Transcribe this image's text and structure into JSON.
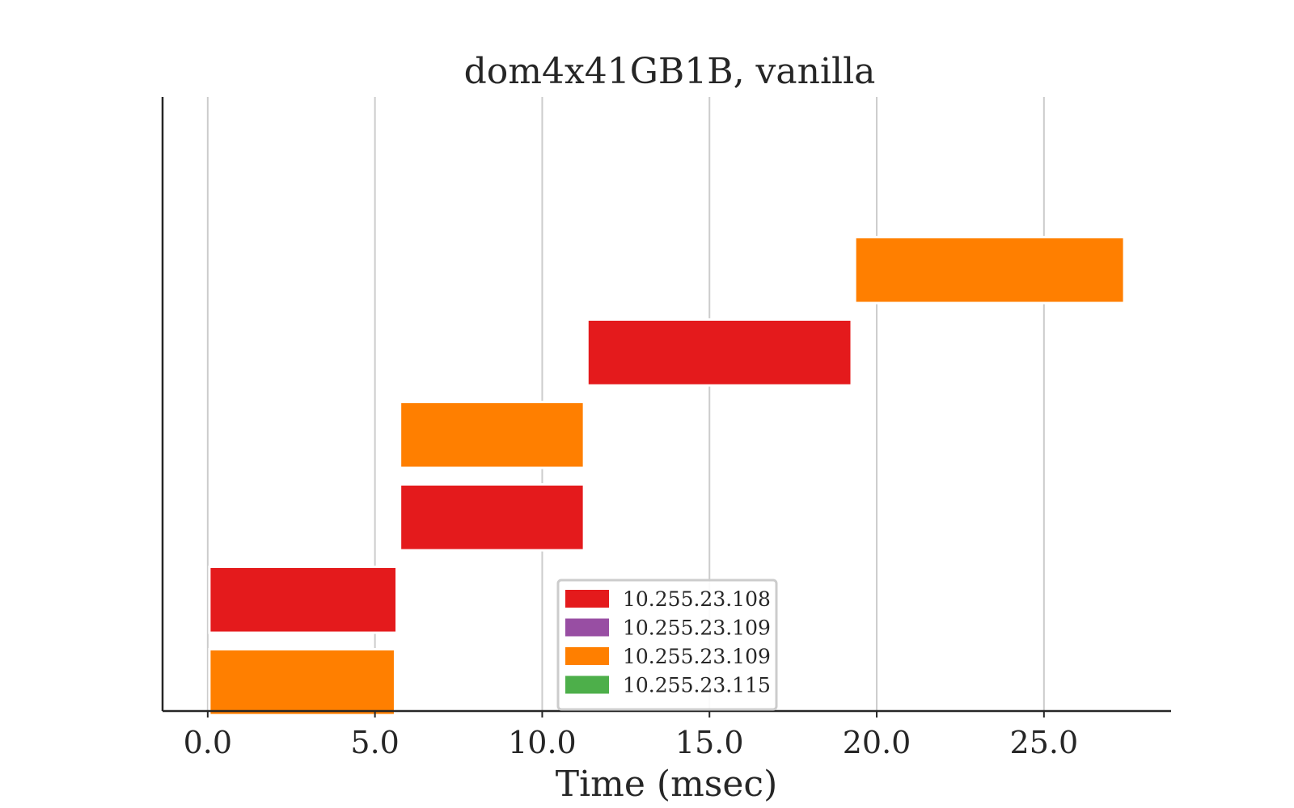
{
  "chart_data": {
    "type": "bar",
    "orientation": "horizontal",
    "title": "dom4x41GB1B, vanilla",
    "xlabel": "Time (msec)",
    "ylabel": "",
    "xlim": [
      -1.35,
      28.8
    ],
    "ylim": [
      -0.35,
      7.1
    ],
    "x_ticks": [
      0.0,
      5.0,
      10.0,
      15.0,
      20.0,
      25.0
    ],
    "x_tick_labels": [
      "0.0",
      "5.0",
      "10.0",
      "15.0",
      "20.0",
      "25.0"
    ],
    "grid": "vertical",
    "legend": {
      "placement": "lower center",
      "entries": [
        {
          "label": "10.255.23.108",
          "color": "#e41a1c"
        },
        {
          "label": "10.255.23.109",
          "color": "#984ea3"
        },
        {
          "label": "10.255.23.109",
          "color": "#ff7f00"
        },
        {
          "label": "10.255.23.115",
          "color": "#4daf4a"
        }
      ]
    },
    "bars": [
      {
        "row": 0,
        "start": 0.05,
        "end": 5.6,
        "color": "#ff7f00"
      },
      {
        "row": 1,
        "start": 0.05,
        "end": 5.65,
        "color": "#e41a1c"
      },
      {
        "row": 2,
        "start": 5.75,
        "end": 11.25,
        "color": "#e41a1c"
      },
      {
        "row": 3,
        "start": 5.75,
        "end": 11.25,
        "color": "#ff7f00"
      },
      {
        "row": 4,
        "start": 11.35,
        "end": 19.25,
        "color": "#e41a1c"
      },
      {
        "row": 5,
        "start": 19.35,
        "end": 27.4,
        "color": "#ff7f00"
      }
    ]
  }
}
